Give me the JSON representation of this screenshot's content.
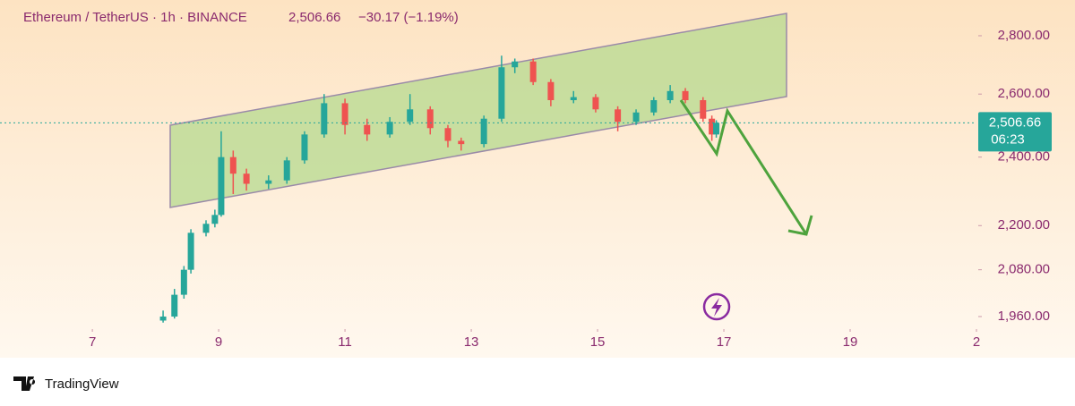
{
  "chart_data": {
    "type": "candlestick",
    "symbol": "Ethereum / TetherUS · 1h · BINANCE",
    "price": "2,506.66",
    "change": "−30.17 (−1.19%)",
    "last_price": {
      "value": 2506.66,
      "label": "2,506.66"
    },
    "countdown": "06:23",
    "brand": "TradingView",
    "log_scale": true,
    "up_color": "#26a69a",
    "down_color": "#ef5350",
    "x": [
      8.12,
      8.3,
      8.45,
      8.56,
      8.8,
      8.94,
      9.04,
      9.23,
      9.44,
      9.79,
      10.08,
      10.36,
      10.67,
      11.0,
      11.35,
      11.71,
      12.03,
      12.35,
      12.63,
      12.84,
      13.2,
      13.48,
      13.69,
      13.98,
      14.26,
      14.62,
      14.97,
      15.32,
      15.61,
      15.89,
      16.15,
      16.39,
      16.67,
      16.81,
      16.88
    ],
    "open": [
      1950,
      1960,
      2015,
      2080,
      2180,
      2205,
      2230,
      2400,
      2350,
      2320,
      2330,
      2390,
      2470,
      2570,
      2500,
      2470,
      2510,
      2550,
      2490,
      2450,
      2440,
      2520,
      2690,
      2710,
      2640,
      2580,
      2590,
      2550,
      2510,
      2540,
      2580,
      2610,
      2580,
      2520,
      2470
    ],
    "high": [
      1975,
      2030,
      2090,
      2190,
      2215,
      2245,
      2480,
      2420,
      2365,
      2345,
      2400,
      2480,
      2600,
      2585,
      2520,
      2525,
      2600,
      2560,
      2500,
      2460,
      2530,
      2730,
      2720,
      2720,
      2650,
      2610,
      2600,
      2560,
      2550,
      2590,
      2630,
      2620,
      2590,
      2530,
      2515
    ],
    "low": [
      1945,
      1955,
      2005,
      2070,
      2170,
      2195,
      2225,
      2290,
      2300,
      2305,
      2320,
      2380,
      2460,
      2470,
      2450,
      2460,
      2500,
      2470,
      2430,
      2420,
      2430,
      2510,
      2670,
      2630,
      2560,
      2570,
      2540,
      2480,
      2500,
      2530,
      2570,
      2570,
      2510,
      2450,
      2460
    ],
    "close": [
      1960,
      2015,
      2080,
      2180,
      2205,
      2230,
      2400,
      2350,
      2320,
      2330,
      2390,
      2470,
      2570,
      2500,
      2470,
      2510,
      2550,
      2490,
      2450,
      2440,
      2520,
      2690,
      2710,
      2640,
      2580,
      2590,
      2550,
      2510,
      2540,
      2580,
      2610,
      2580,
      2520,
      2470,
      2506.66
    ],
    "xlim": [
      5.75,
      21.0
    ],
    "xticks": [
      7,
      9,
      11,
      13,
      15,
      17,
      19,
      {
        "value": 21,
        "label": "2"
      }
    ],
    "ylim": [
      1940,
      2930
    ],
    "yticks": [
      {
        "value": 1960,
        "label": "1,960.00"
      },
      {
        "value": 2080,
        "label": "2,080.00"
      },
      {
        "value": 2200,
        "label": "2,200.00"
      },
      {
        "value": 2400,
        "label": "2,400.00"
      },
      {
        "value": 2600,
        "label": "2,600.00"
      },
      {
        "value": 2800,
        "label": "2,800.00"
      }
    ]
  }
}
